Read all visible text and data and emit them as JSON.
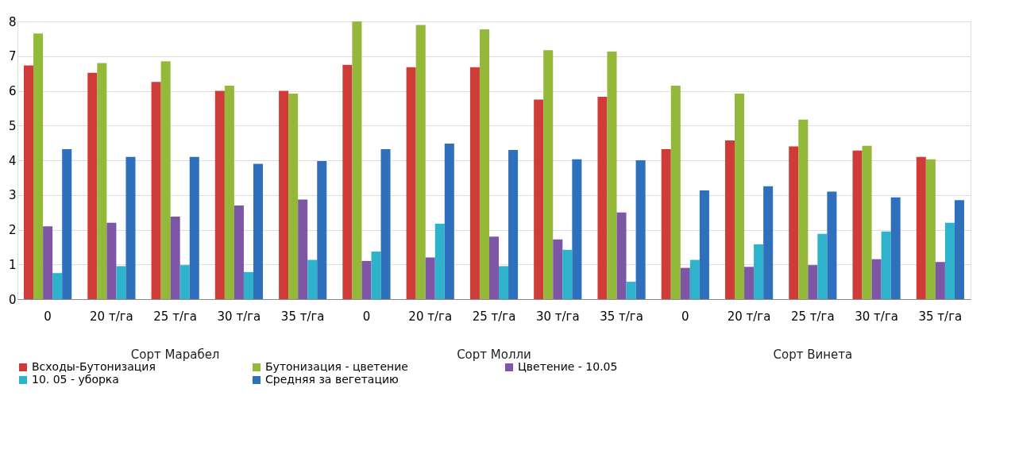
{
  "chart_data": {
    "type": "bar",
    "categories": [
      "0",
      "20 т/га",
      "25 т/га",
      "30 т/га",
      "35 т/га",
      "0",
      "20 т/га",
      "25 т/га",
      "30 т/га",
      "35 т/га",
      "0",
      "20 т/га",
      "25 т/га",
      "30 т/га",
      "35 т/га"
    ],
    "series": [
      {
        "name": "Всходы-Бутонизация",
        "color": "#cf3b37",
        "values": [
          6.73,
          6.52,
          6.26,
          6.0,
          6.0,
          6.75,
          6.68,
          6.68,
          5.75,
          5.83,
          4.32,
          4.57,
          4.4,
          4.28,
          4.1
        ]
      },
      {
        "name": "Бутонизация - цветение",
        "color": "#93b83a",
        "values": [
          7.65,
          6.8,
          6.85,
          6.15,
          5.92,
          8.0,
          7.9,
          7.77,
          7.17,
          7.13,
          6.15,
          5.92,
          5.17,
          4.42,
          4.03
        ]
      },
      {
        "name": "Цветение - 10.05",
        "color": "#7d57a6",
        "values": [
          2.1,
          2.2,
          2.38,
          2.7,
          2.87,
          1.1,
          1.2,
          1.8,
          1.72,
          2.5,
          0.9,
          0.93,
          0.98,
          1.15,
          1.07
        ]
      },
      {
        "name": "10. 05 - уборка",
        "color": "#2fb3cc",
        "values": [
          0.75,
          0.95,
          0.98,
          0.78,
          1.13,
          1.37,
          2.17,
          0.95,
          1.42,
          0.5,
          1.13,
          1.58,
          1.88,
          1.95,
          2.2
        ]
      },
      {
        "name": "Средняя за вегетацию",
        "color": "#2f70bd",
        "values": [
          4.32,
          4.1,
          4.1,
          3.9,
          3.98,
          4.32,
          4.48,
          4.3,
          4.03,
          4.0,
          3.13,
          3.25,
          3.1,
          2.93,
          2.85
        ]
      }
    ],
    "ylim": [
      0,
      8
    ],
    "yticks": [
      0,
      1,
      2,
      3,
      4,
      5,
      6,
      7,
      8
    ],
    "grid": "y",
    "legend": "bottom",
    "annotations": [
      "Сорт Марабел",
      "Сорт Молли",
      "Сорт Винета"
    ]
  }
}
